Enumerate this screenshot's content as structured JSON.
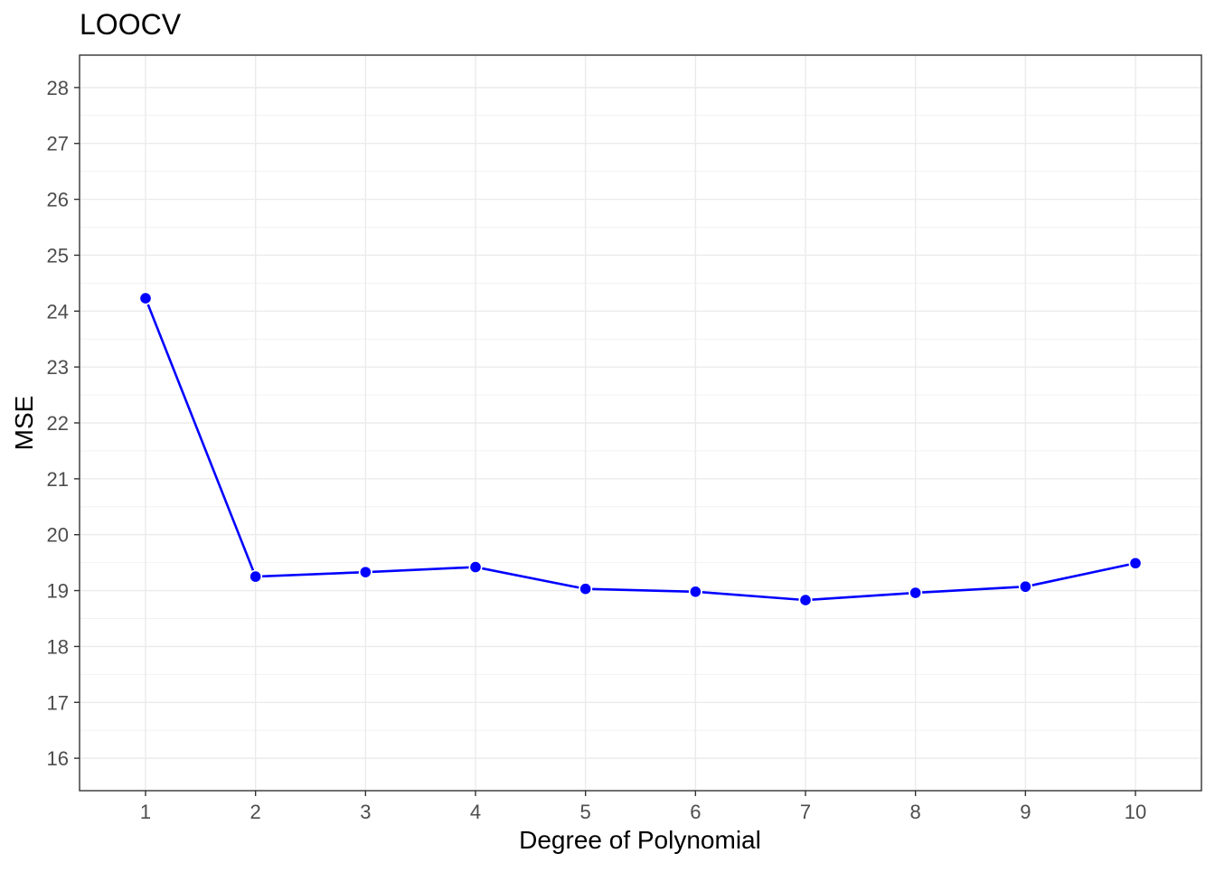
{
  "chart_data": {
    "type": "line",
    "title": "LOOCV",
    "xlabel": "Degree of Polynomial",
    "ylabel": "MSE",
    "x": [
      1,
      2,
      3,
      4,
      5,
      6,
      7,
      8,
      9,
      10
    ],
    "series": [
      {
        "values": [
          24.23,
          19.25,
          19.33,
          19.42,
          19.03,
          18.98,
          18.83,
          18.96,
          19.07,
          19.49
        ],
        "color": "#0000ff"
      }
    ],
    "xlim": [
      0.4,
      10.6
    ],
    "ylim": [
      15.42,
      28.58
    ],
    "x_ticks": [
      "1",
      "2",
      "3",
      "4",
      "5",
      "6",
      "7",
      "8",
      "9",
      "10"
    ],
    "y_ticks": [
      "16",
      "17",
      "18",
      "19",
      "20",
      "21",
      "22",
      "23",
      "24",
      "25",
      "26",
      "27",
      "28"
    ],
    "grid": true,
    "legend": "none",
    "theme": "bw"
  }
}
